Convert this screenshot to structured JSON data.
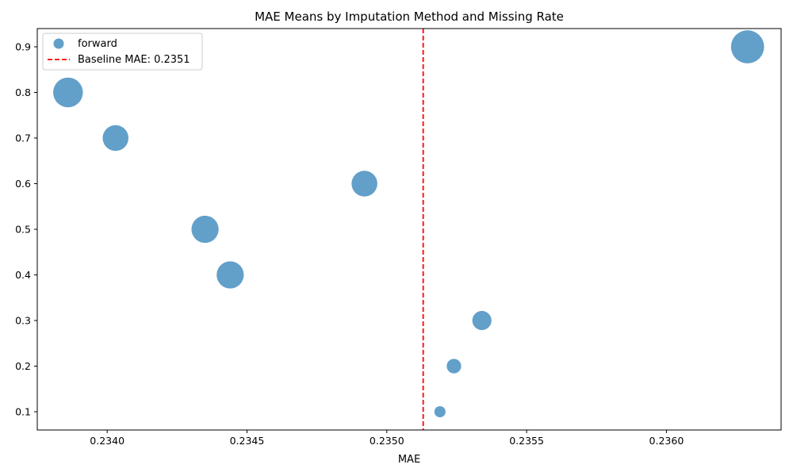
{
  "chart_data": {
    "type": "scatter",
    "title": "MAE Means by Imputation Method and Missing Rate",
    "xlabel": "MAE",
    "ylabel": "",
    "xlim": [
      0.23375,
      0.23641
    ],
    "ylim": [
      0.06,
      0.94
    ],
    "xticks": [
      "0.2340",
      "0.2345",
      "0.2350",
      "0.2355",
      "0.2360"
    ],
    "yticks": [
      "0.1",
      "0.2",
      "0.3",
      "0.4",
      "0.5",
      "0.6",
      "0.7",
      "0.8",
      "0.9"
    ],
    "xtick_values": [
      0.234,
      0.2345,
      0.235,
      0.2355,
      0.236
    ],
    "ytick_values": [
      0.1,
      0.2,
      0.3,
      0.4,
      0.5,
      0.6,
      0.7,
      0.8,
      0.9
    ],
    "grid": false,
    "legend_position": "upper-left",
    "series": [
      {
        "name": "forward",
        "color": "#1f77b4",
        "points": [
          {
            "x": 0.23519,
            "y": 0.1,
            "size": 1
          },
          {
            "x": 0.23524,
            "y": 0.2,
            "size": 2
          },
          {
            "x": 0.23534,
            "y": 0.3,
            "size": 4
          },
          {
            "x": 0.23444,
            "y": 0.4,
            "size": 9
          },
          {
            "x": 0.23435,
            "y": 0.5,
            "size": 9
          },
          {
            "x": 0.23492,
            "y": 0.6,
            "size": 8
          },
          {
            "x": 0.23403,
            "y": 0.7,
            "size": 8
          },
          {
            "x": 0.23386,
            "y": 0.8,
            "size": 11
          },
          {
            "x": 0.23629,
            "y": 0.9,
            "size": 14
          }
        ]
      }
    ],
    "reference_line": {
      "label": "Baseline MAE: 0.2351",
      "value": 0.23513,
      "color": "#ff0000",
      "style": "dashed"
    }
  }
}
